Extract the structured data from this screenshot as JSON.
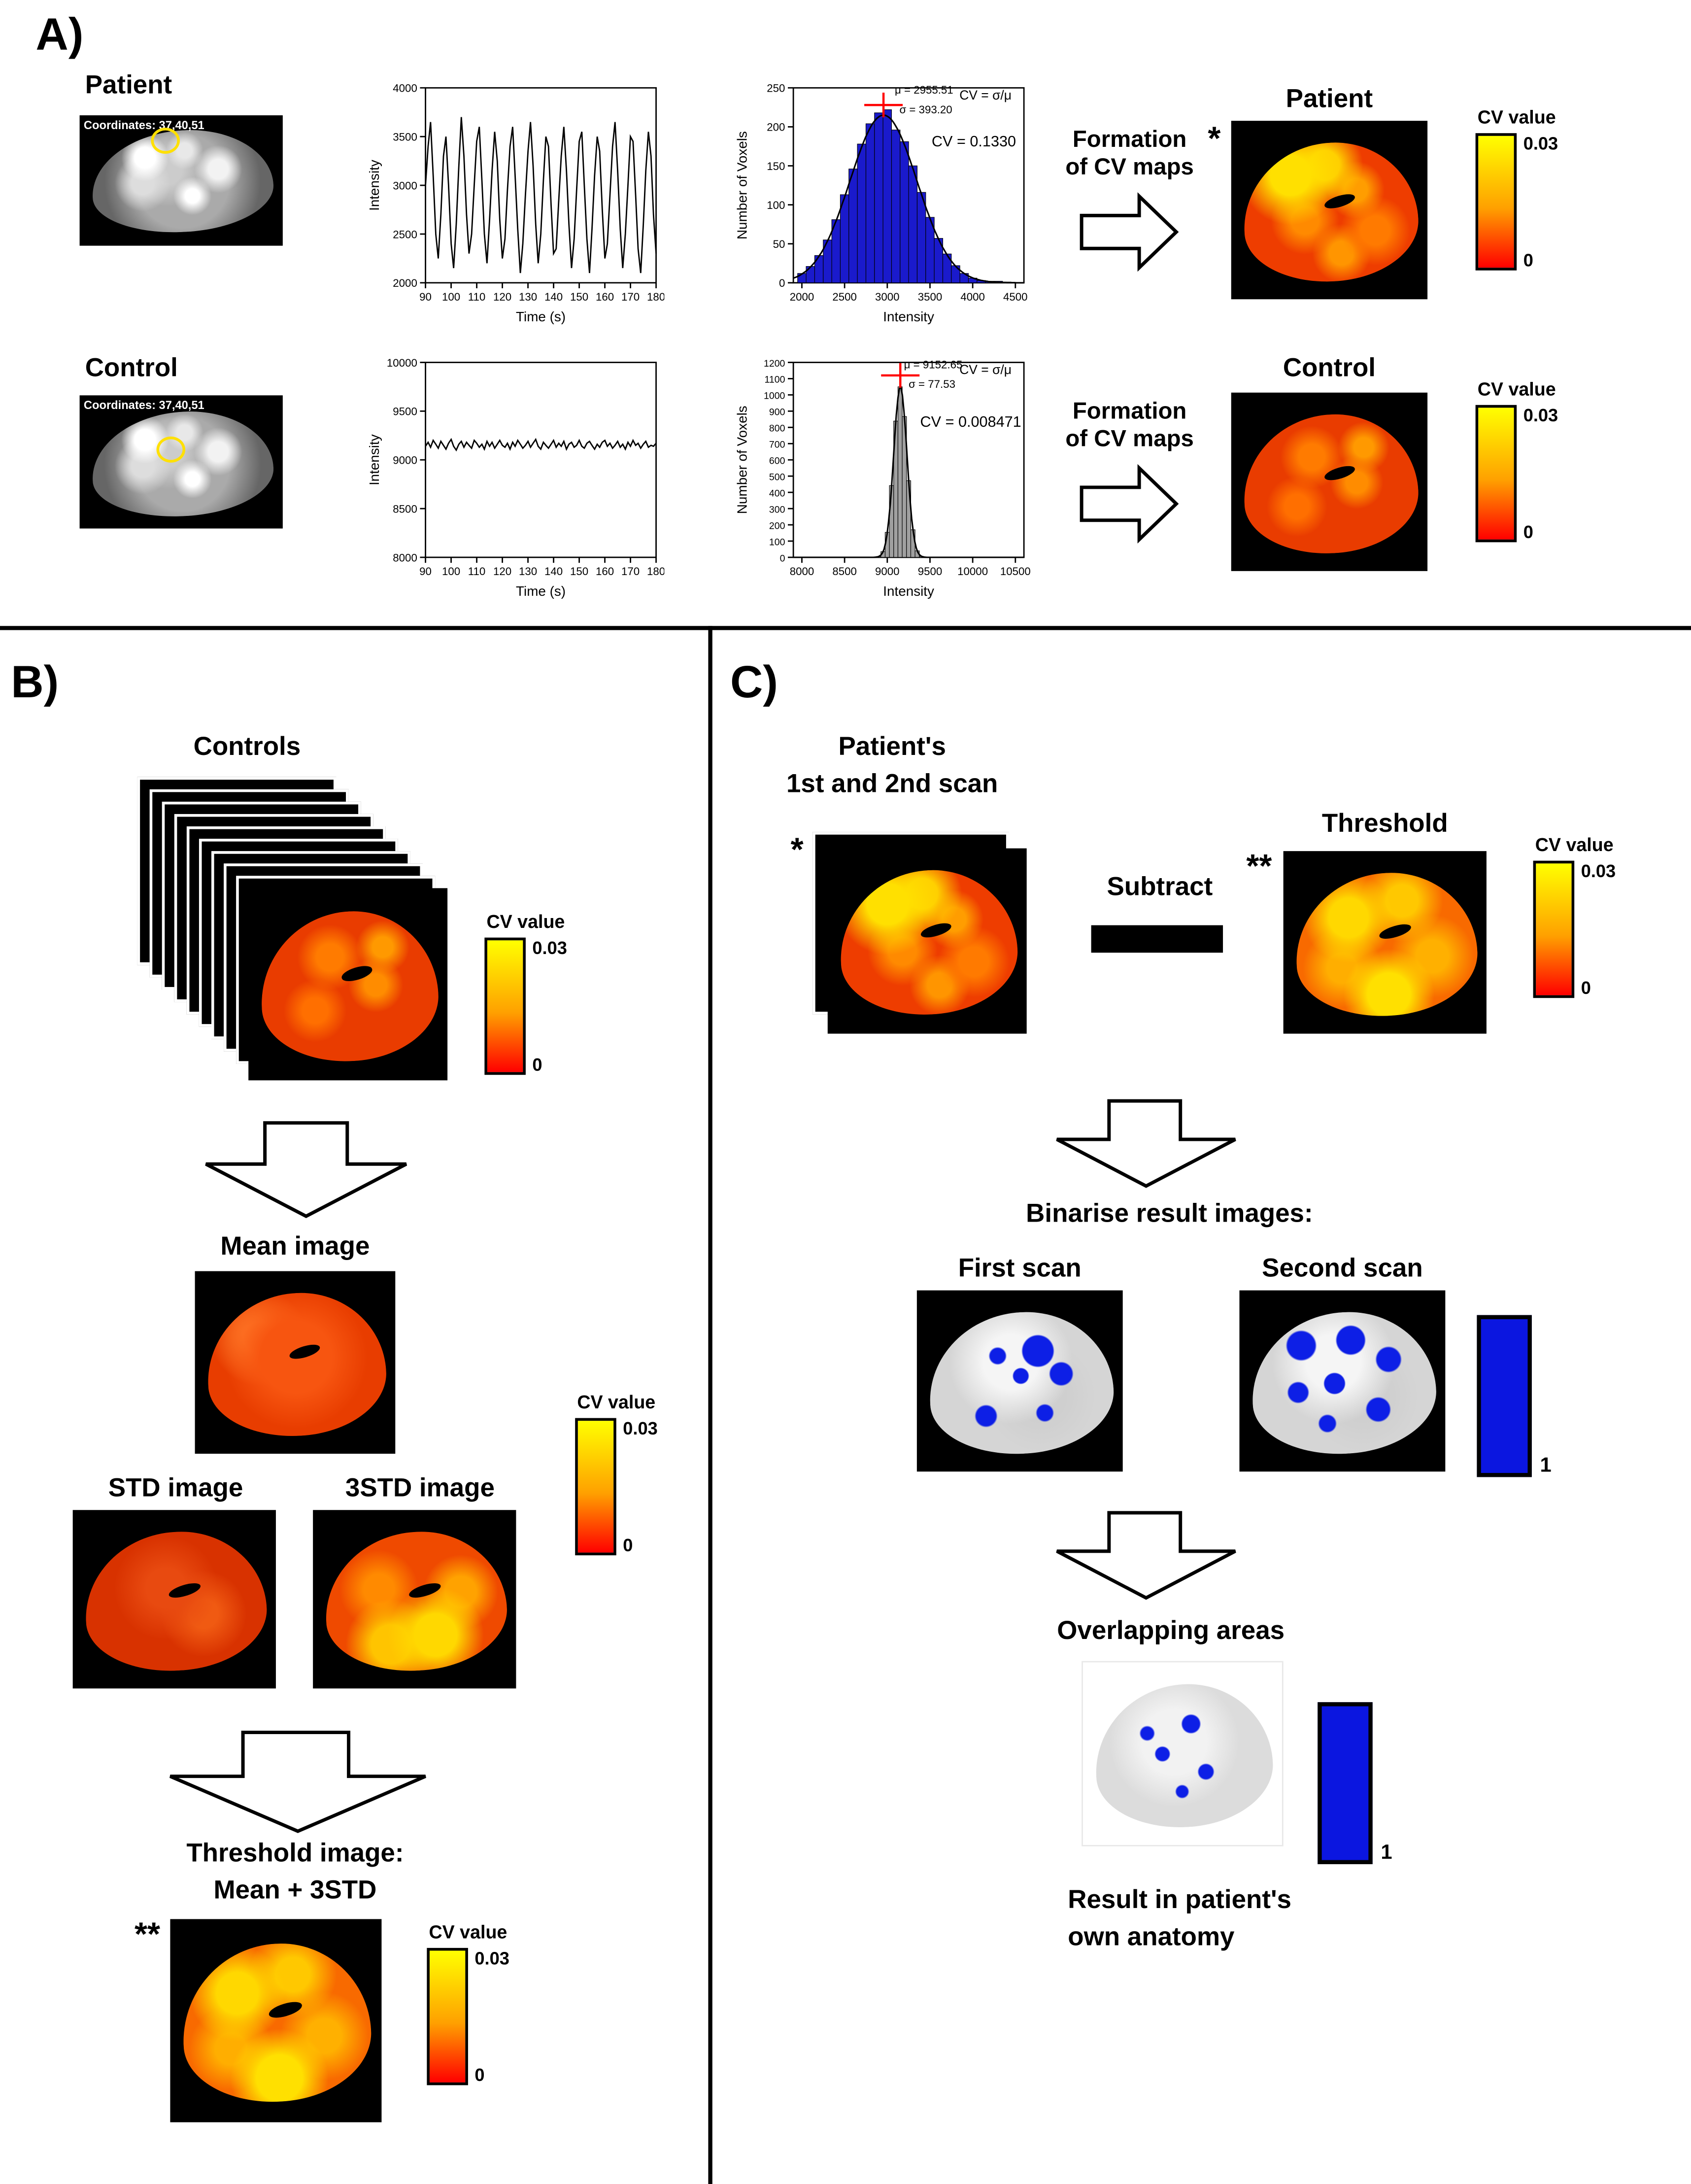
{
  "panel_a": {
    "label": "A)",
    "formation_arrow": {
      "line1": "Formation",
      "line2": "of CV maps"
    },
    "rows": [
      {
        "title": "Patient",
        "coords": "Coordinates: 37,40,51",
        "map_star": "*",
        "map_title": "Patient"
      },
      {
        "title": "Control",
        "coords": "Coordinates: 37,40,51",
        "map_star": "",
        "map_title": "Control"
      }
    ]
  },
  "panel_b": {
    "label": "B)",
    "controls_title": "Controls",
    "mean_title": "Mean image",
    "std_title": "STD image",
    "std3_title": "3STD image",
    "threshold_line1": "Threshold image:",
    "threshold_line2": "Mean + 3STD",
    "threshold_stars": "**"
  },
  "panel_c": {
    "label": "C)",
    "scans_line1": "Patient's",
    "scans_line2": "1st and 2nd scan",
    "scans_star": "*",
    "subtract_label": "Subtract",
    "threshold_star": "**",
    "threshold_title": "Threshold",
    "binarise_title": "Binarise result images:",
    "first_scan_title": "First scan",
    "second_scan_title": "Second scan",
    "overlap_title": "Overlapping areas",
    "result_line1": "Result in patient's",
    "result_line2": "own anatomy"
  },
  "cv_colorbar": {
    "title": "CV value",
    "max": "0.03",
    "min": "0"
  },
  "binary_colorbar": {
    "label": "1"
  },
  "chart_data": [
    {
      "id": "ts-patient",
      "type": "line",
      "title": "",
      "xlabel": "Time (s)",
      "ylabel": "Intensity",
      "xlim": [
        90,
        180
      ],
      "ylim": [
        2000,
        4000
      ],
      "x_ticks": [
        90,
        100,
        110,
        120,
        130,
        140,
        150,
        160,
        170,
        180
      ],
      "y_ticks": [
        2000,
        2500,
        3000,
        3500,
        4000
      ],
      "x_start": 90,
      "x_step": 1,
      "values": [
        3000,
        3400,
        3650,
        3100,
        2500,
        2250,
        2700,
        3300,
        3500,
        3000,
        2400,
        2150,
        2600,
        3200,
        3700,
        3300,
        2700,
        2300,
        2500,
        3000,
        3450,
        3600,
        3050,
        2500,
        2200,
        2650,
        3150,
        3550,
        3250,
        2650,
        2250,
        2450,
        2950,
        3400,
        3600,
        3100,
        2550,
        2100,
        2400,
        2900,
        3350,
        3650,
        3200,
        2600,
        2200,
        2500,
        3050,
        3500,
        3400,
        2800,
        2300,
        2350,
        2850,
        3300,
        3600,
        3150,
        2600,
        2150,
        2450,
        2950,
        3450,
        3550,
        3000,
        2450,
        2100,
        2550,
        3100,
        3500,
        3350,
        2750,
        2250,
        2400,
        2900,
        3400,
        3650,
        3150,
        2550,
        2150,
        2500,
        3000,
        3500,
        3450,
        2900,
        2350,
        2100,
        2600,
        3150,
        3550,
        3300,
        2700,
        2300
      ]
    },
    {
      "id": "hist-patient",
      "type": "histogram",
      "title": "",
      "xlabel": "Intensity",
      "ylabel": "Number of Voxels",
      "xlim": [
        1900,
        4600
      ],
      "ylim": [
        0,
        250
      ],
      "x_ticks": [
        2000,
        2500,
        3000,
        3500,
        4000,
        4500
      ],
      "y_ticks": [
        0,
        50,
        100,
        150,
        200,
        250
      ],
      "bin_width": 100,
      "bin_centers": [
        2000,
        2100,
        2200,
        2300,
        2400,
        2500,
        2600,
        2700,
        2800,
        2900,
        3000,
        3100,
        3200,
        3300,
        3400,
        3500,
        3600,
        3700,
        3800,
        3900,
        4000,
        4100,
        4200,
        4300,
        4400
      ],
      "counts": [
        12,
        21,
        35,
        55,
        81,
        113,
        146,
        178,
        204,
        218,
        222,
        196,
        181,
        150,
        116,
        84,
        57,
        37,
        22,
        12,
        6,
        3,
        2,
        2,
        1
      ],
      "bar_color": "#1a1acc",
      "curve": {
        "mu": 2955.51,
        "sigma": 393.2,
        "peak": 215
      },
      "marker": {
        "mu": 2955.51,
        "y": 228,
        "color": "#ff0000"
      },
      "annotations": [
        {
          "text": "μ = 2955.51",
          "fx": 0.44,
          "fy": 0.03,
          "size": 8
        },
        {
          "text": "σ = 393.20",
          "fx": 0.46,
          "fy": 0.13,
          "size": 8
        },
        {
          "text": "CV = σ/μ",
          "fx": 0.72,
          "fy": 0.06,
          "size": 9.5
        },
        {
          "text": "CV = 0.1330",
          "fx": 0.6,
          "fy": 0.3,
          "size": 11
        }
      ]
    },
    {
      "id": "ts-control",
      "type": "line",
      "title": "",
      "xlabel": "Time (s)",
      "ylabel": "Intensity",
      "xlim": [
        90,
        180
      ],
      "ylim": [
        8000,
        10000
      ],
      "x_ticks": [
        90,
        100,
        110,
        120,
        130,
        140,
        150,
        160,
        170,
        180
      ],
      "y_ticks": [
        8000,
        8500,
        9000,
        9500,
        10000
      ],
      "x_start": 90,
      "x_step": 1,
      "values": [
        9140,
        9180,
        9130,
        9200,
        9160,
        9120,
        9190,
        9150,
        9110,
        9170,
        9210,
        9140,
        9100,
        9160,
        9190,
        9130,
        9180,
        9150,
        9120,
        9200,
        9170,
        9130,
        9160,
        9110,
        9190,
        9140,
        9180,
        9120,
        9160,
        9200,
        9150,
        9130,
        9170,
        9110,
        9180,
        9140,
        9200,
        9160,
        9120,
        9150,
        9190,
        9130,
        9170,
        9210,
        9140,
        9110,
        9180,
        9150,
        9120,
        9160,
        9200,
        9130,
        9170,
        9140,
        9190,
        9110,
        9160,
        9180,
        9130,
        9150,
        9200,
        9140,
        9120,
        9170,
        9190,
        9150,
        9110,
        9160,
        9130,
        9180,
        9200,
        9140,
        9170,
        9120,
        9150,
        9190,
        9130,
        9160,
        9110,
        9180,
        9140,
        9200,
        9150,
        9170,
        9120,
        9160,
        9190,
        9130,
        9150,
        9140,
        9170
      ]
    },
    {
      "id": "hist-control",
      "type": "histogram",
      "title": "",
      "xlabel": "Intensity",
      "ylabel": "Number of Voxels",
      "xlim": [
        7900,
        10600
      ],
      "ylim": [
        0,
        1200
      ],
      "x_ticks": [
        8000,
        8500,
        9000,
        9500,
        10000,
        10500
      ],
      "y_ticks": [
        0,
        100,
        200,
        300,
        400,
        500,
        600,
        700,
        800,
        900,
        1000,
        1100,
        1200
      ],
      "bin_width": 50,
      "bin_centers": [
        8900,
        8950,
        9000,
        9050,
        9100,
        9150,
        9200,
        9250,
        9300,
        9350,
        9400,
        9450
      ],
      "counts": [
        5,
        35,
        154,
        442,
        839,
        1050,
        867,
        472,
        170,
        40,
        6,
        1
      ],
      "bar_color": "#a0a0a0",
      "curve": {
        "mu": 9152.65,
        "sigma": 77.53,
        "peak": 1050
      },
      "marker": {
        "mu": 9152.65,
        "y": 1120,
        "color": "#ff0000"
      },
      "annotations": [
        {
          "text": "μ = 9152.65",
          "fx": 0.48,
          "fy": 0.03,
          "size": 8
        },
        {
          "text": "σ = 77.53",
          "fx": 0.5,
          "fy": 0.13,
          "size": 8
        },
        {
          "text": "CV = σ/μ",
          "fx": 0.72,
          "fy": 0.06,
          "size": 9.5
        },
        {
          "text": "CV = 0.008471",
          "fx": 0.55,
          "fy": 0.33,
          "size": 11
        }
      ]
    }
  ]
}
